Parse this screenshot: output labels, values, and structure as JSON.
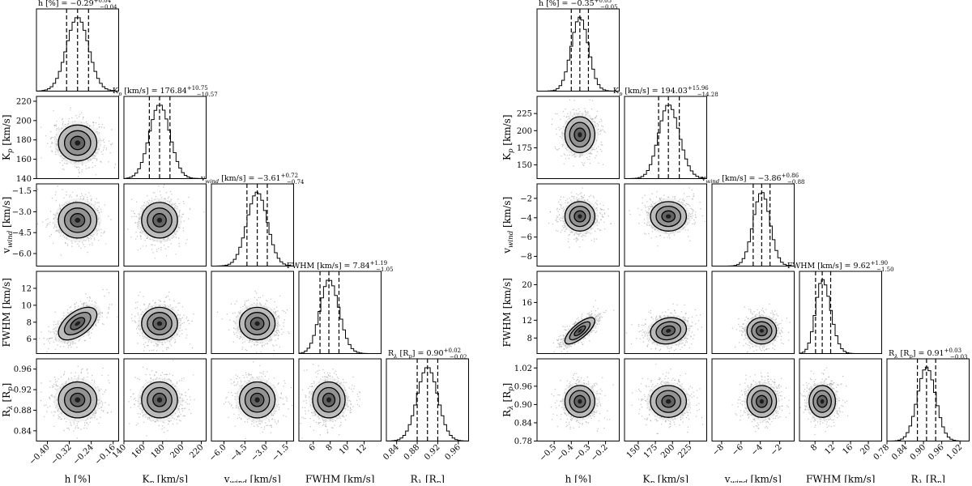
{
  "figure": {
    "description_free": true
  },
  "chart_data": [
    {
      "type": "corner",
      "name": "left",
      "parameters": [
        {
          "id": "h",
          "label": "h [%]",
          "median": -0.29,
          "err_plus": 0.04,
          "err_minus": 0.04,
          "title": "h [%] = −0.29",
          "range": [
            -0.44,
            -0.14
          ],
          "ticks": [
            -0.4,
            -0.32,
            -0.24,
            -0.16
          ],
          "tick_labels": [
            "−0.40",
            "−0.32",
            "−0.24",
            "−0.16"
          ],
          "sigma": 0.04
        },
        {
          "id": "kp",
          "label": "K_p [km/s]",
          "median": 176.84,
          "err_plus": 10.75,
          "err_minus": 10.57,
          "title": "K_p [km/s] = 176.84",
          "range": [
            140,
            225
          ],
          "ticks": [
            140,
            160,
            180,
            200,
            220
          ],
          "tick_labels": [
            "140",
            "160",
            "180",
            "200",
            "220"
          ],
          "sigma": 10.6
        },
        {
          "id": "vwind",
          "label": "v_wind [km/s]",
          "median": -3.61,
          "err_plus": 0.72,
          "err_minus": 0.74,
          "title": "v_wind [km/s] = −3.61",
          "range": [
            -6.9,
            -1.0
          ],
          "ticks": [
            -6.0,
            -4.5,
            -3.0,
            -1.5
          ],
          "tick_labels": [
            "−6.0",
            "−4.5",
            "−3.0",
            "−1.5"
          ],
          "sigma": 0.73
        },
        {
          "id": "fwhm",
          "label": "FWHM [km/s]",
          "median": 7.84,
          "err_plus": 1.19,
          "err_minus": 1.05,
          "title": "FWHM [km/s] = 7.84",
          "range": [
            4.3,
            14.0
          ],
          "ticks": [
            6,
            8,
            10,
            12
          ],
          "tick_labels": [
            "6",
            "8",
            "10",
            "12"
          ],
          "sigma": 1.1
        },
        {
          "id": "rl",
          "label": "R_λ [R_p]",
          "median": 0.9,
          "err_plus": 0.02,
          "err_minus": 0.02,
          "title": "R_λ [R_p] = 0.90",
          "range": [
            0.82,
            0.98
          ],
          "ticks": [
            0.84,
            0.88,
            0.92,
            0.96
          ],
          "tick_labels": [
            "0.84",
            "0.88",
            "0.92",
            "0.96"
          ],
          "sigma": 0.02
        }
      ],
      "correlations": [
        [
          0,
          3,
          0.55
        ]
      ]
    },
    {
      "type": "corner",
      "name": "right",
      "parameters": [
        {
          "id": "h",
          "label": "h [%]",
          "median": -0.35,
          "err_plus": 0.05,
          "err_minus": 0.05,
          "title": "h [%] = −0.35",
          "range": [
            -0.6,
            -0.12
          ],
          "ticks": [
            -0.5,
            -0.4,
            -0.3,
            -0.2
          ],
          "tick_labels": [
            "−0.5",
            "−0.4",
            "−0.3",
            "−0.2"
          ],
          "sigma": 0.05
        },
        {
          "id": "kp",
          "label": "K_p [km/s]",
          "median": 194.03,
          "err_plus": 15.96,
          "err_minus": 14.28,
          "title": "K_p [km/s] = 194.03",
          "range": [
            130,
            250
          ],
          "ticks": [
            150,
            175,
            200,
            225
          ],
          "tick_labels": [
            "150",
            "175",
            "200",
            "225"
          ],
          "sigma": 15.0
        },
        {
          "id": "vwind",
          "label": "v_wind [km/s]",
          "median": -3.86,
          "err_plus": 0.86,
          "err_minus": 0.88,
          "title": "v_wind [km/s] = −3.86",
          "range": [
            -9.0,
            -0.5
          ],
          "ticks": [
            -8,
            -6,
            -4,
            -2
          ],
          "tick_labels": [
            "−8",
            "−6",
            "−4",
            "−2"
          ],
          "sigma": 0.87
        },
        {
          "id": "fwhm",
          "label": "FWHM [km/s]",
          "median": 9.62,
          "err_plus": 1.9,
          "err_minus": 1.5,
          "title": "FWHM [km/s] = 9.62",
          "range": [
            4.5,
            23.0
          ],
          "ticks": [
            8,
            12,
            16,
            20
          ],
          "tick_labels": [
            "8",
            "12",
            "16",
            "20"
          ],
          "sigma": 1.7
        },
        {
          "id": "rl",
          "label": "R_λ [R_p]",
          "median": 0.91,
          "err_plus": 0.03,
          "err_minus": 0.03,
          "title": "R_λ [R_p] = 0.91",
          "range": [
            0.78,
            1.05
          ],
          "ticks": [
            0.78,
            0.84,
            0.9,
            0.96,
            1.02
          ],
          "tick_labels": [
            "0.78",
            "0.84",
            "0.90",
            "0.96",
            "1.02"
          ],
          "sigma": 0.03
        }
      ],
      "correlations": [
        [
          0,
          3,
          0.75
        ],
        [
          1,
          3,
          0.15
        ]
      ]
    }
  ]
}
